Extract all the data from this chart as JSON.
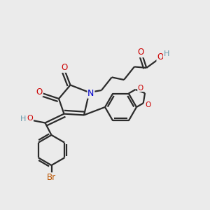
{
  "bg_color": "#ebebeb",
  "bond_color": "#2b2b2b",
  "bond_width": 1.6,
  "atoms": {
    "N": {
      "color": "#0000cc"
    },
    "O": {
      "color": "#cc0000"
    },
    "H": {
      "color": "#6699aa"
    },
    "Br": {
      "color": "#bb5500"
    }
  },
  "fig_size": [
    3.0,
    3.0
  ],
  "dpi": 100
}
